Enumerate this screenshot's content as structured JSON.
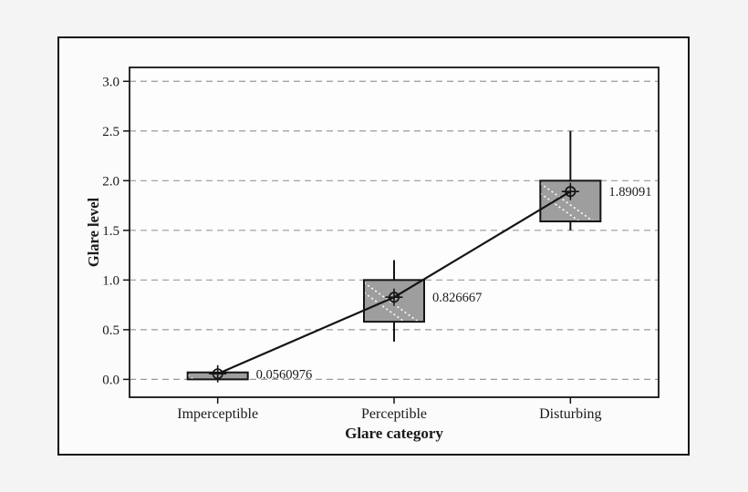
{
  "page": {
    "background": "#f4f4f5"
  },
  "chart_data": {
    "type": "boxplot",
    "title": "",
    "xlabel": "Glare category",
    "ylabel": "Glare level",
    "categories": [
      "Imperceptible",
      "Perceptible",
      "Disturbing"
    ],
    "ytick_labels": [
      "0.0",
      "0.5",
      "1.0",
      "1.5",
      "2.0",
      "2.5",
      "3.0"
    ],
    "ytick_values": [
      0,
      0.5,
      1,
      1.5,
      2,
      2.5,
      3
    ],
    "ylim": [
      -0.18,
      3.14
    ],
    "grid": "horizontal-dashed",
    "legend": "none",
    "connect_line": "means",
    "marker": "circle-cross-mean",
    "series": [
      {
        "category": "Imperceptible",
        "mean": 0.0560976,
        "mean_label": "0.0560976",
        "q1": 0.0,
        "q3": 0.07,
        "whisker_low": 0.0,
        "whisker_high": 0.07
      },
      {
        "category": "Perceptible",
        "mean": 0.826667,
        "mean_label": "0.826667",
        "q1": 0.58,
        "q3": 1.0,
        "whisker_low": 0.38,
        "whisker_high": 1.2
      },
      {
        "category": "Disturbing",
        "mean": 1.89091,
        "mean_label": "1.89091",
        "q1": 1.59,
        "q3": 2.0,
        "whisker_low": 1.5,
        "whisker_high": 2.5
      }
    ],
    "colors": {
      "page_bg": "#f4f4f5",
      "frame_bg": "#fbfbfb",
      "plot_bg": "#fdfdfd",
      "grid": "#9a9a9a",
      "box_fill": "#9e9e9e",
      "box_hatch": "#ffffff",
      "line": "#141414",
      "text": "#1a1a1a"
    }
  }
}
